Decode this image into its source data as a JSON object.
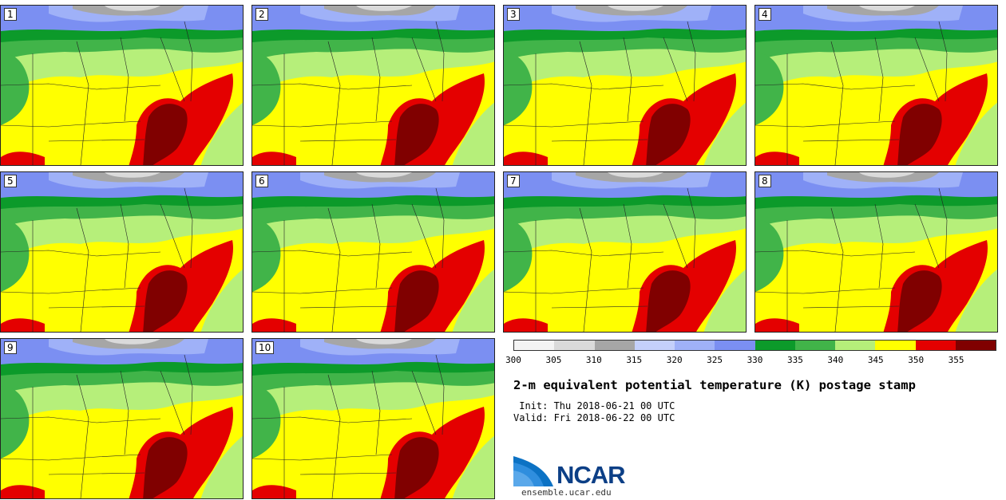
{
  "panels": [
    {
      "id": "1"
    },
    {
      "id": "2"
    },
    {
      "id": "3"
    },
    {
      "id": "4"
    },
    {
      "id": "5"
    },
    {
      "id": "6"
    },
    {
      "id": "7"
    },
    {
      "id": "8"
    },
    {
      "id": "9"
    },
    {
      "id": "10"
    }
  ],
  "colorbar": {
    "colors": [
      "#f4f4f4",
      "#dadada",
      "#a6a6a6",
      "#c4d0fb",
      "#9fb1f8",
      "#7b8ff2",
      "#0c9a2a",
      "#41b449",
      "#b6ef7a",
      "#ffff00",
      "#e40000",
      "#800000"
    ],
    "ticks": [
      "300",
      "305",
      "310",
      "315",
      "320",
      "325",
      "330",
      "335",
      "340",
      "345",
      "350",
      "355"
    ]
  },
  "title": "2-m equivalent potential temperature (K) postage stamp",
  "init_text": " Init: Thu 2018-06-21 00 UTC",
  "valid_text": "Valid: Fri 2018-06-22 00 UTC",
  "logo": {
    "name": "NCAR",
    "url": "ensemble.ucar.edu"
  }
}
